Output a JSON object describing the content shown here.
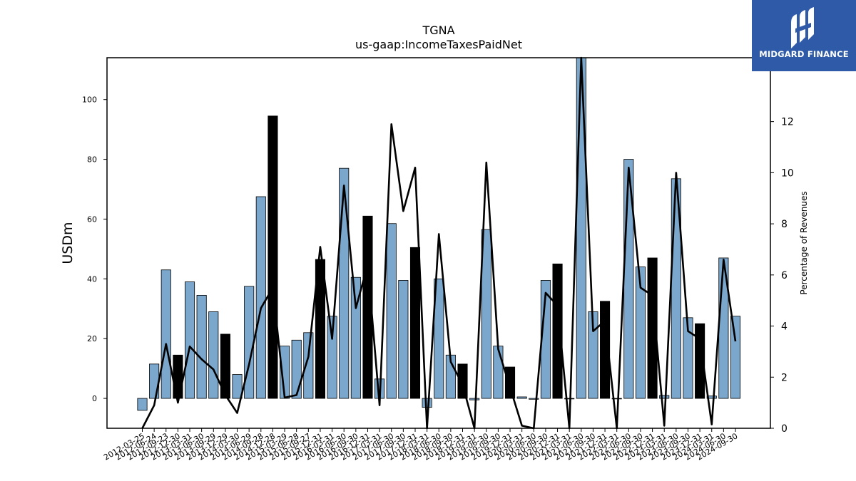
{
  "chart_data": {
    "type": "bar",
    "title": "TGNA",
    "subtitle": "us-gaap:IncomeTaxesPaidNet",
    "ylabel": "USDm",
    "y2label": "Percentage of Revenues",
    "ylim": [
      -10,
      114
    ],
    "y2lim": [
      0,
      14.5
    ],
    "yticks": [
      0,
      20,
      40,
      60,
      80,
      100
    ],
    "y2ticks": [
      0,
      2,
      4,
      6,
      8,
      10,
      12
    ],
    "categories": [
      "2012-03-25",
      "2012-06-24",
      "2012-09-23",
      "2012-12-30",
      "2013-03-31",
      "2013-06-30",
      "2013-09-29",
      "2013-12-29",
      "2014-03-30",
      "2014-06-29",
      "2014-09-28",
      "2014-12-28",
      "2015-03-29",
      "2015-06-28",
      "2015-09-27",
      "2015-12-31",
      "2016-03-31",
      "2016-06-30",
      "2016-09-30",
      "2016-12-31",
      "2017-03-31",
      "2017-06-30",
      "2017-09-30",
      "2017-12-31",
      "2018-03-31",
      "2018-06-30",
      "2018-09-30",
      "2018-12-31",
      "2019-03-31",
      "2019-06-30",
      "2019-09-30",
      "2019-12-31",
      "2020-03-31",
      "2020-06-30",
      "2020-09-30",
      "2020-12-31",
      "2021-03-31",
      "2021-06-30",
      "2021-09-30",
      "2021-12-31",
      "2022-03-31",
      "2022-06-30",
      "2022-09-30",
      "2022-12-31",
      "2023-03-31",
      "2023-06-30",
      "2023-09-30",
      "2023-12-31",
      "2024-03-31",
      "2024-06-30",
      "2024-09-30"
    ],
    "xtick_labels": [
      "2012-03-25",
      "2012-06-24",
      "2012-09-23",
      "2012-12-30",
      "2013-03-31",
      "2013-06-30",
      "2013-09-29",
      "2013-12-29",
      "2014-03-30",
      "2014-06-29",
      "2014-09-28",
      "2014-12-28",
      "2015-03-29",
      "2015-06-28",
      "2015-09-27",
      "2015-12-31",
      "2016-03-31",
      "2016-06-30",
      "2016-09-30",
      "2016-12-31",
      "2017-03-31",
      "2017-06-30",
      "2017-09-30",
      "2017-12-31",
      "2018-03-31",
      "2018-06-30",
      "2018-09-30",
      "2018-12-31",
      "2019-03-31",
      "2019-06-30",
      "2019-09-30",
      "2019-12-31",
      "2020-03-31",
      "2020-06-30",
      "2020-09-30",
      "2020-12-31",
      "2021-03-31",
      "2021-06-30",
      "2021-09-30",
      "2021-12-31",
      "2022-03-31",
      "2022-06-30",
      "2022-09-30",
      "2022-12-31",
      "2023-03-31",
      "2023-06-30",
      "2023-09-30",
      "2023-12-31",
      "2024-03-31",
      "2024-06-30",
      "2024-09-30"
    ],
    "series": [
      {
        "type": "bar",
        "axis": "left",
        "values": [
          -4,
          11.5,
          43,
          14.5,
          39,
          34.5,
          29,
          21.5,
          8,
          37.5,
          67.5,
          94.5,
          17.5,
          19.5,
          22,
          46.5,
          27.5,
          77,
          40.5,
          61,
          6.5,
          58.5,
          39.5,
          50.5,
          -3,
          40,
          14.5,
          11.5,
          -0.5,
          56.5,
          17.5,
          10.5,
          0.5,
          -0.3,
          39.5,
          45,
          0,
          114,
          29,
          32.5,
          0,
          80,
          44,
          47,
          1,
          73.5,
          27,
          25,
          0.8,
          47,
          27.5
        ],
        "fills": [
          "#7ba7cc",
          "#7ba7cc",
          "#7ba7cc",
          "#000000",
          "#7ba7cc",
          "#7ba7cc",
          "#7ba7cc",
          "#000000",
          "#7ba7cc",
          "#7ba7cc",
          "#7ba7cc",
          "#000000",
          "#7ba7cc",
          "#7ba7cc",
          "#7ba7cc",
          "#000000",
          "#7ba7cc",
          "#7ba7cc",
          "#7ba7cc",
          "#000000",
          "#7ba7cc",
          "#7ba7cc",
          "#7ba7cc",
          "#000000",
          "#7ba7cc",
          "#7ba7cc",
          "#7ba7cc",
          "#000000",
          "#7ba7cc",
          "#7ba7cc",
          "#7ba7cc",
          "#000000",
          "#7ba7cc",
          "#7ba7cc",
          "#7ba7cc",
          "#000000",
          "#7ba7cc",
          "#7ba7cc",
          "#7ba7cc",
          "#000000",
          "#7ba7cc",
          "#7ba7cc",
          "#7ba7cc",
          "#000000",
          "#7ba7cc",
          "#7ba7cc",
          "#7ba7cc",
          "#000000",
          "#7ba7cc",
          "#7ba7cc",
          "#7ba7cc"
        ]
      },
      {
        "type": "line",
        "axis": "right",
        "color": "#000000",
        "values": [
          0,
          0.9,
          3.3,
          1.0,
          3.2,
          2.7,
          2.3,
          1.3,
          0.6,
          2.5,
          4.7,
          5.5,
          1.2,
          1.3,
          2.8,
          7.1,
          3.5,
          9.5,
          4.7,
          6.4,
          0.9,
          11.9,
          8.5,
          10.2,
          0,
          7.6,
          2.6,
          1.7,
          0,
          10.4,
          3.1,
          1.6,
          0.1,
          0,
          5.3,
          4.8,
          0,
          14.5,
          3.8,
          4.2,
          0,
          10.2,
          5.5,
          5.2,
          0.1,
          10.0,
          3.8,
          3.5,
          0.15,
          6.6,
          3.4
        ]
      }
    ],
    "colors": {
      "bar_primary": "#7ba7cc",
      "bar_alternate": "#000000",
      "line": "#000000"
    },
    "grid": false,
    "legend": "none"
  },
  "logo": {
    "text": "MIDGARD FINANCE",
    "background": "#2f5aa8"
  }
}
